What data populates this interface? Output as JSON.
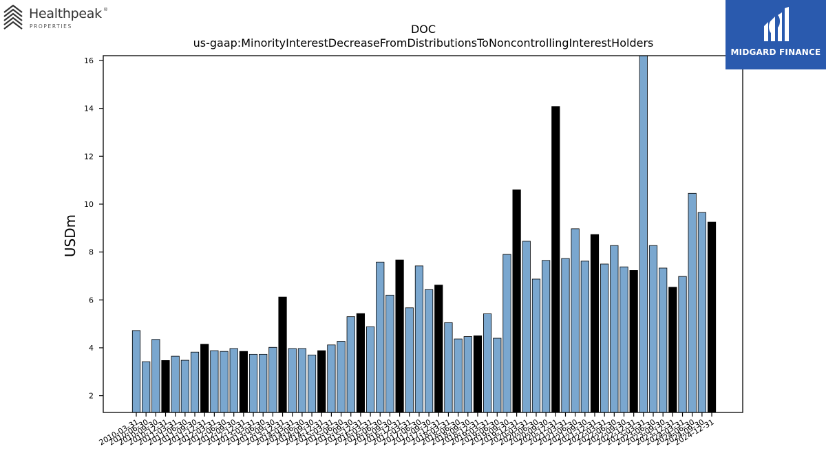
{
  "logos": {
    "left_name": "Healthpeak",
    "left_sub": "PROPERTIES",
    "left_reg": "®",
    "right_name": "MIDGARD FINANCE"
  },
  "colors": {
    "bar_light": "#7aa7cf",
    "bar_dark": "#000000",
    "brand_blue": "#2a5aae"
  },
  "chart_data": {
    "type": "bar",
    "title": "DOC",
    "subtitle": "us-gaap:MinorityInterestDecreaseFromDistributionsToNoncontrollingInterestHolders",
    "xlabel": "",
    "ylabel": "USDm",
    "ylim": [
      1.3,
      16.2
    ],
    "yticks": [
      2,
      4,
      6,
      8,
      10,
      12,
      14,
      16
    ],
    "grid": false,
    "legend": "none",
    "categories": [
      "2010-03-31",
      "2010-06-30",
      "2010-09-30",
      "2010-12-31",
      "2011-03-31",
      "2011-06-30",
      "2011-09-30",
      "2011-12-31",
      "2012-03-31",
      "2012-06-30",
      "2012-09-30",
      "2012-12-31",
      "2013-03-31",
      "2013-06-30",
      "2013-09-30",
      "2013-12-31",
      "2014-03-31",
      "2014-06-30",
      "2014-09-30",
      "2014-12-31",
      "2015-03-31",
      "2015-06-30",
      "2015-09-30",
      "2015-12-31",
      "2016-03-31",
      "2016-06-30",
      "2016-09-30",
      "2016-12-31",
      "2017-03-31",
      "2017-06-30",
      "2017-09-30",
      "2017-12-31",
      "2018-03-31",
      "2018-06-30",
      "2018-09-30",
      "2018-12-31",
      "2019-03-31",
      "2019-06-30",
      "2019-09-30",
      "2019-12-31",
      "2020-03-31",
      "2020-06-30",
      "2020-09-30",
      "2020-12-31",
      "2021-03-31",
      "2021-06-30",
      "2021-09-30",
      "2021-12-31",
      "2022-03-31",
      "2022-06-30",
      "2022-09-30",
      "2022-12-31",
      "2023-03-31",
      "2023-06-30",
      "2023-09-30",
      "2023-12-31",
      "2024-03-31",
      "2024-06-30",
      "2024-09-30",
      "2024-12-31"
    ],
    "values": [
      4.72,
      3.42,
      4.35,
      3.47,
      3.65,
      3.48,
      3.82,
      4.15,
      3.88,
      3.85,
      3.97,
      3.85,
      3.73,
      3.73,
      4.02,
      6.12,
      3.97,
      3.97,
      3.7,
      3.88,
      4.12,
      4.27,
      5.3,
      5.43,
      4.88,
      7.58,
      6.2,
      7.67,
      5.67,
      7.42,
      6.43,
      6.62,
      5.05,
      4.37,
      4.47,
      4.5,
      5.42,
      4.4,
      7.9,
      10.6,
      8.45,
      6.87,
      7.65,
      14.08,
      7.73,
      8.97,
      7.62,
      8.73,
      7.5,
      8.27,
      7.38,
      7.23,
      16.2,
      8.27,
      7.33,
      6.53,
      6.98,
      10.45,
      9.65,
      9.25
    ],
    "highlight": "year-end quarter (December 31) bars shown in black"
  }
}
